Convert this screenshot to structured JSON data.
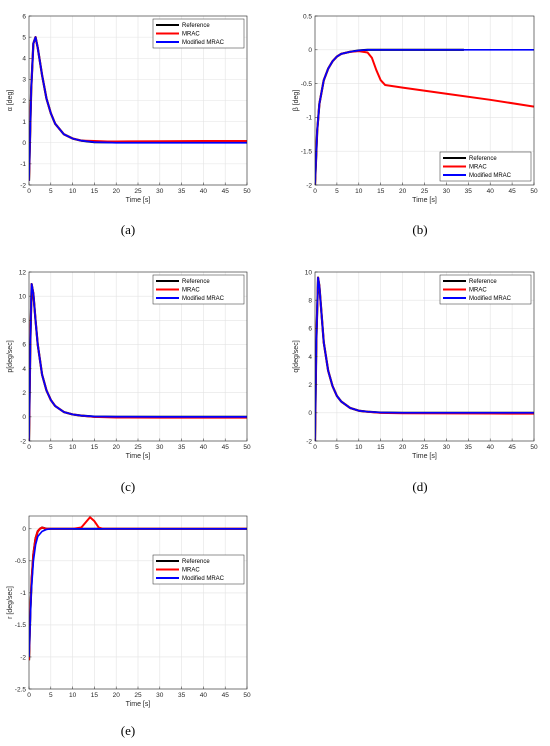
{
  "colors": {
    "reference": "#000000",
    "mrac": "#ff0000",
    "modified": "#0000ff"
  },
  "chart_data": [
    {
      "type": "line",
      "caption": "(a)",
      "xlabel": "Time [s]",
      "ylabel": "α [deg]",
      "xlim": [
        0,
        50
      ],
      "ylim": [
        -2,
        6
      ],
      "xticks": [
        0,
        5,
        10,
        15,
        20,
        25,
        30,
        35,
        40,
        45,
        50
      ],
      "yticks": [
        -2,
        -1,
        0,
        1,
        2,
        3,
        4,
        5,
        6
      ],
      "legend": [
        "Reference",
        "MRAC",
        "Modified MRAC"
      ],
      "legend_loc": "top-right",
      "grid": true,
      "series": [
        {
          "name": "Reference",
          "x": [
            0,
            0.5,
            1,
            1.5,
            2,
            3,
            4,
            5,
            6,
            8,
            10,
            12,
            15,
            20,
            30,
            40,
            50
          ],
          "y": [
            -1.8,
            2.5,
            4.7,
            5.0,
            4.5,
            3.2,
            2.1,
            1.4,
            0.9,
            0.4,
            0.2,
            0.1,
            0.03,
            0.02,
            0.02,
            0.02,
            0.02
          ]
        },
        {
          "name": "MRAC",
          "x": [
            0,
            0.5,
            1,
            1.5,
            2,
            3,
            4,
            5,
            6,
            8,
            10,
            12,
            15,
            18,
            20,
            30,
            40,
            50
          ],
          "y": [
            -1.8,
            2.5,
            4.7,
            5.0,
            4.5,
            3.2,
            2.1,
            1.4,
            0.9,
            0.4,
            0.2,
            0.1,
            0.08,
            0.06,
            0.06,
            0.07,
            0.08,
            0.08
          ]
        },
        {
          "name": "Modified MRAC",
          "x": [
            0,
            0.5,
            1,
            1.5,
            2,
            3,
            4,
            5,
            6,
            8,
            10,
            12,
            15,
            20,
            30,
            40,
            50
          ],
          "y": [
            -1.8,
            2.5,
            4.7,
            5.0,
            4.5,
            3.2,
            2.1,
            1.4,
            0.9,
            0.4,
            0.2,
            0.1,
            0.03,
            0.0,
            0.0,
            0.0,
            0.0
          ]
        }
      ]
    },
    {
      "type": "line",
      "caption": "(b)",
      "xlabel": "Time [s]",
      "ylabel": "β [deg]",
      "xlim": [
        0,
        50
      ],
      "ylim": [
        -2,
        0.5
      ],
      "xticks": [
        0,
        5,
        10,
        15,
        20,
        25,
        30,
        35,
        40,
        45,
        50
      ],
      "yticks": [
        -2,
        -1.5,
        -1,
        -0.5,
        0,
        0.5
      ],
      "legend": [
        "Reference",
        "MRAC",
        "Modified MRAC"
      ],
      "legend_loc": "bottom-right",
      "grid": true,
      "series": [
        {
          "name": "Reference",
          "x": [
            0,
            0.5,
            1,
            2,
            3,
            4,
            5,
            6,
            8,
            10,
            12,
            20,
            34
          ],
          "y": [
            -2.0,
            -1.2,
            -0.8,
            -0.45,
            -0.28,
            -0.17,
            -0.1,
            -0.06,
            -0.03,
            -0.01,
            0.0,
            0.0,
            0.0
          ]
        },
        {
          "name": "MRAC",
          "x": [
            0,
            0.5,
            1,
            2,
            3,
            4,
            5,
            6,
            8,
            10,
            12,
            13,
            14,
            15,
            16,
            20,
            30,
            40,
            50
          ],
          "y": [
            -2.0,
            -1.2,
            -0.8,
            -0.45,
            -0.28,
            -0.17,
            -0.1,
            -0.06,
            -0.03,
            -0.02,
            -0.04,
            -0.12,
            -0.3,
            -0.45,
            -0.52,
            -0.56,
            -0.65,
            -0.74,
            -0.84
          ]
        },
        {
          "name": "Modified MRAC",
          "x": [
            0,
            0.5,
            1,
            2,
            3,
            4,
            5,
            6,
            8,
            10,
            12,
            20,
            30,
            40,
            50
          ],
          "y": [
            -2.0,
            -1.2,
            -0.8,
            -0.45,
            -0.28,
            -0.17,
            -0.1,
            -0.06,
            -0.03,
            -0.01,
            0.0,
            0.0,
            0.0,
            0.0,
            0.0
          ]
        }
      ]
    },
    {
      "type": "line",
      "caption": "(c)",
      "xlabel": "Time [s]",
      "ylabel": "p[deg/sec]",
      "xlim": [
        0,
        50
      ],
      "ylim": [
        -2,
        12
      ],
      "xticks": [
        0,
        5,
        10,
        15,
        20,
        25,
        30,
        35,
        40,
        45,
        50
      ],
      "yticks": [
        -2,
        0,
        2,
        4,
        6,
        8,
        10,
        12
      ],
      "legend": [
        "Reference",
        "MRAC",
        "Modified MRAC"
      ],
      "legend_loc": "top-right",
      "grid": true,
      "series": [
        {
          "name": "Reference",
          "x": [
            0,
            0.3,
            0.6,
            1,
            1.5,
            2,
            3,
            4,
            5,
            6,
            8,
            10,
            12,
            15,
            20,
            30,
            40,
            50
          ],
          "y": [
            -2,
            6,
            11,
            10.2,
            8,
            6,
            3.5,
            2.2,
            1.4,
            0.9,
            0.4,
            0.2,
            0.1,
            0.02,
            0.0,
            0.0,
            0.0,
            0.0
          ]
        },
        {
          "name": "MRAC",
          "x": [
            0,
            0.3,
            0.6,
            1,
            1.5,
            2,
            3,
            4,
            5,
            6,
            8,
            10,
            12,
            15,
            20,
            30,
            40,
            50
          ],
          "y": [
            -2,
            6,
            11,
            10.2,
            8,
            6,
            3.5,
            2.2,
            1.4,
            0.9,
            0.4,
            0.2,
            0.1,
            0.0,
            -0.05,
            -0.06,
            -0.06,
            -0.06
          ]
        },
        {
          "name": "Modified MRAC",
          "x": [
            0,
            0.3,
            0.6,
            1,
            1.5,
            2,
            3,
            4,
            5,
            6,
            8,
            10,
            12,
            15,
            20,
            30,
            40,
            50
          ],
          "y": [
            -2,
            6,
            11,
            10.2,
            8,
            6,
            3.5,
            2.2,
            1.4,
            0.9,
            0.4,
            0.2,
            0.1,
            0.03,
            0.01,
            0.0,
            0.0,
            0.0
          ]
        }
      ]
    },
    {
      "type": "line",
      "caption": "(d)",
      "xlabel": "Time [s]",
      "ylabel": "q[deg/sec]",
      "xlim": [
        0,
        50
      ],
      "ylim": [
        -2,
        10
      ],
      "xticks": [
        0,
        5,
        10,
        15,
        20,
        25,
        30,
        35,
        40,
        45,
        50
      ],
      "yticks": [
        -2,
        0,
        2,
        4,
        6,
        8,
        10
      ],
      "legend": [
        "Reference",
        "MRAC",
        "Modified MRAC"
      ],
      "legend_loc": "top-right",
      "grid": true,
      "series": [
        {
          "name": "Reference",
          "x": [
            0,
            0.3,
            0.7,
            1,
            1.5,
            2,
            3,
            4,
            5,
            6,
            8,
            10,
            12,
            15,
            20,
            30,
            40,
            50
          ],
          "y": [
            -2,
            5,
            9.6,
            9.0,
            7,
            5,
            3,
            1.9,
            1.2,
            0.8,
            0.35,
            0.15,
            0.08,
            0.02,
            0.0,
            0.0,
            0.0,
            0.0
          ]
        },
        {
          "name": "MRAC",
          "x": [
            0,
            0.3,
            0.7,
            1,
            1.5,
            2,
            3,
            4,
            5,
            6,
            8,
            10,
            12,
            15,
            20,
            30,
            40,
            50
          ],
          "y": [
            -2,
            5,
            9.6,
            9.0,
            7,
            5,
            3,
            1.9,
            1.2,
            0.8,
            0.35,
            0.15,
            0.08,
            0.0,
            -0.03,
            -0.04,
            -0.05,
            -0.06
          ]
        },
        {
          "name": "Modified MRAC",
          "x": [
            0,
            0.3,
            0.7,
            1,
            1.5,
            2,
            3,
            4,
            5,
            6,
            8,
            10,
            12,
            15,
            20,
            30,
            40,
            50
          ],
          "y": [
            -2,
            5,
            9.6,
            9.0,
            7,
            5,
            3,
            1.9,
            1.2,
            0.8,
            0.35,
            0.15,
            0.08,
            0.02,
            0.0,
            0.0,
            0.0,
            0.0
          ]
        }
      ]
    },
    {
      "type": "line",
      "caption": "(e)",
      "xlabel": "Time [s]",
      "ylabel": "r [deg/sec]",
      "xlim": [
        0,
        50
      ],
      "ylim": [
        -2.5,
        0.2
      ],
      "xticks": [
        0,
        5,
        10,
        15,
        20,
        25,
        30,
        35,
        40,
        45,
        50
      ],
      "yticks": [
        -2.5,
        -2,
        -1.5,
        -1,
        -0.5,
        0
      ],
      "legend": [
        "Reference",
        "MRAC",
        "Modified MRAC"
      ],
      "legend_loc": "middle-right",
      "grid": true,
      "series": [
        {
          "name": "Reference",
          "x": [
            0,
            0.3,
            0.6,
            1,
            1.5,
            2,
            2.5,
            3,
            4,
            5,
            50
          ],
          "y": [
            -2.05,
            -1.3,
            -0.8,
            -0.4,
            -0.15,
            -0.04,
            0.0,
            0.02,
            0.0,
            0.0,
            0.0
          ]
        },
        {
          "name": "MRAC",
          "x": [
            0,
            0.3,
            0.6,
            1,
            1.5,
            2,
            2.5,
            3,
            4,
            5,
            10,
            12,
            13,
            14,
            15,
            16,
            17,
            20,
            30,
            40,
            50
          ],
          "y": [
            -2.05,
            -1.3,
            -0.8,
            -0.4,
            -0.15,
            -0.04,
            0.0,
            0.02,
            0.0,
            0.0,
            0.0,
            0.02,
            0.1,
            0.18,
            0.12,
            0.02,
            0.0,
            0.0,
            0.0,
            0.0,
            0.0
          ]
        },
        {
          "name": "Modified MRAC",
          "x": [
            0,
            0.5,
            1,
            1.5,
            2,
            3,
            4,
            5,
            8,
            10,
            20,
            30,
            40,
            50
          ],
          "y": [
            -2.0,
            -1.0,
            -0.5,
            -0.25,
            -0.12,
            -0.04,
            -0.01,
            0.0,
            0.0,
            0.0,
            0.0,
            0.0,
            0.0,
            0.0
          ]
        }
      ]
    }
  ]
}
